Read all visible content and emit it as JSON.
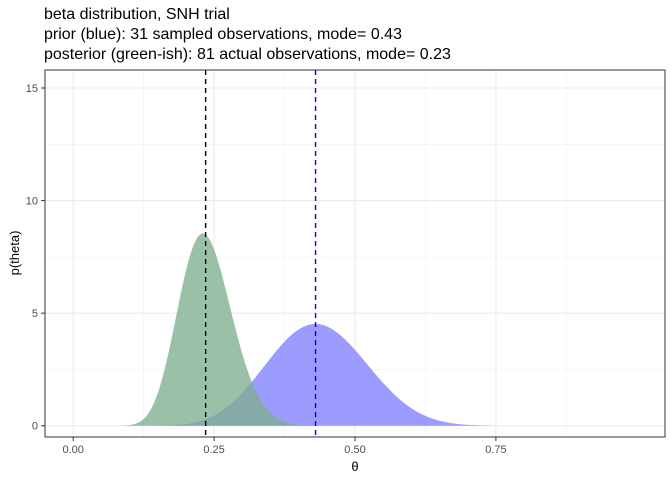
{
  "chart_data": {
    "type": "area",
    "title_lines": [
      "beta distribution, SNH trial",
      "prior (blue): 31 sampled observations, mode= 0.43",
      "posterior (green-ish): 81 actual observations, mode= 0.23"
    ],
    "xlabel": "θ",
    "ylabel": "p(theta)",
    "xlim": [
      -0.05,
      1.05
    ],
    "ylim": [
      -0.5,
      15.8
    ],
    "x_ticks": [
      0,
      0.25,
      0.5,
      0.75
    ],
    "x_tick_labels": [
      "0.00",
      "0.25",
      "0.50",
      "0.75"
    ],
    "y_ticks": [
      0,
      5,
      10,
      15
    ],
    "y_tick_labels": [
      "0",
      "5",
      "10",
      "15"
    ],
    "grid": true,
    "series": [
      {
        "distribution": "beta",
        "alpha": 13.9,
        "beta": 18.1,
        "color": "#8080ff",
        "opacity": 0.78
      },
      {
        "distribution": "beta",
        "alpha": 19.4,
        "beta": 62.6,
        "color": "#7fae90",
        "opacity": 0.78
      }
    ],
    "vlines": [
      {
        "x": 0.235,
        "color": "#000000",
        "dash": "dashed"
      },
      {
        "x": 0.43,
        "color": "#0000ff",
        "dash": "dashed"
      }
    ]
  }
}
